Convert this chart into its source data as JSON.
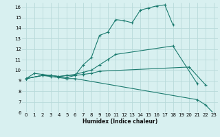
{
  "xlabel": "Humidex (Indice chaleur)",
  "bg_color": "#d8f0f0",
  "grid_color": "#b8dada",
  "line_color": "#1a7a6e",
  "xlim": [
    -0.5,
    23.5
  ],
  "ylim": [
    6,
    16.4
  ],
  "xticks": [
    0,
    1,
    2,
    3,
    4,
    5,
    6,
    7,
    8,
    9,
    10,
    11,
    12,
    13,
    14,
    15,
    16,
    17,
    18,
    19,
    20,
    21,
    22,
    23
  ],
  "yticks": [
    6,
    7,
    8,
    9,
    10,
    11,
    12,
    13,
    14,
    15,
    16
  ],
  "lines": [
    {
      "x": [
        0,
        1,
        2,
        3,
        4,
        5,
        6,
        7,
        8,
        9,
        10,
        11,
        12,
        13,
        14,
        15,
        16,
        17,
        18
      ],
      "y": [
        9.2,
        9.7,
        9.6,
        9.5,
        9.4,
        9.3,
        9.5,
        10.5,
        11.2,
        13.3,
        13.6,
        14.8,
        14.7,
        14.5,
        15.7,
        15.9,
        16.1,
        16.2,
        14.3
      ]
    },
    {
      "x": [
        0,
        2,
        3,
        4,
        5,
        6,
        7,
        8,
        9,
        10,
        11,
        18,
        21
      ],
      "y": [
        9.2,
        9.5,
        9.5,
        9.4,
        9.5,
        9.6,
        9.8,
        10.0,
        10.5,
        11.0,
        11.5,
        12.3,
        8.7
      ]
    },
    {
      "x": [
        0,
        2,
        3,
        4,
        5,
        6,
        7,
        8,
        9,
        20,
        22
      ],
      "y": [
        9.2,
        9.5,
        9.5,
        9.4,
        9.5,
        9.5,
        9.6,
        9.7,
        9.9,
        10.3,
        8.6
      ]
    },
    {
      "x": [
        0,
        2,
        3,
        4,
        5,
        6,
        21,
        22,
        23
      ],
      "y": [
        9.2,
        9.5,
        9.4,
        9.3,
        9.2,
        9.2,
        7.2,
        6.7,
        5.9
      ]
    }
  ]
}
